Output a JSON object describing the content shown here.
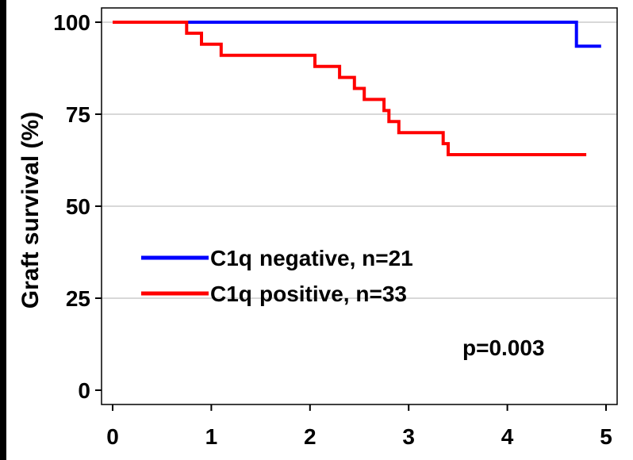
{
  "chart_data": {
    "type": "line",
    "title": "",
    "xlabel": "",
    "ylabel": "Graft survival (%)",
    "xlim": [
      0,
      5
    ],
    "ylim": [
      0,
      100
    ],
    "x_ticks": [
      "0",
      "1",
      "2",
      "3",
      "4",
      "5"
    ],
    "y_ticks": [
      "0",
      "25",
      "50",
      "75",
      "100"
    ],
    "grid": "horizontal",
    "step": true,
    "series": [
      {
        "name": "C1q negative, n=21",
        "label_left": "C1q",
        "label_right": "negative, n=21",
        "color": "#0000ff",
        "x": [
          0,
          4.7,
          4.7,
          4.95
        ],
        "y": [
          100,
          100,
          93.5,
          93.5
        ]
      },
      {
        "name": "C1q positive, n=33",
        "label_left": "C1q",
        "label_right": "positive, n=33",
        "color": "#ff0000",
        "x": [
          0,
          0.75,
          0.75,
          0.9,
          0.9,
          1.1,
          1.1,
          2.05,
          2.05,
          2.3,
          2.3,
          2.45,
          2.45,
          2.55,
          2.55,
          2.75,
          2.75,
          2.8,
          2.8,
          2.9,
          2.9,
          3.35,
          3.35,
          3.4,
          3.4,
          4.8
        ],
        "y": [
          100,
          100,
          97,
          97,
          94,
          94,
          91,
          91,
          88,
          88,
          85,
          85,
          82,
          82,
          79,
          79,
          76,
          76,
          73,
          73,
          70,
          70,
          67,
          67,
          64,
          64
        ]
      }
    ],
    "annotation": "p=0.003",
    "legend_position": "lower-left"
  }
}
